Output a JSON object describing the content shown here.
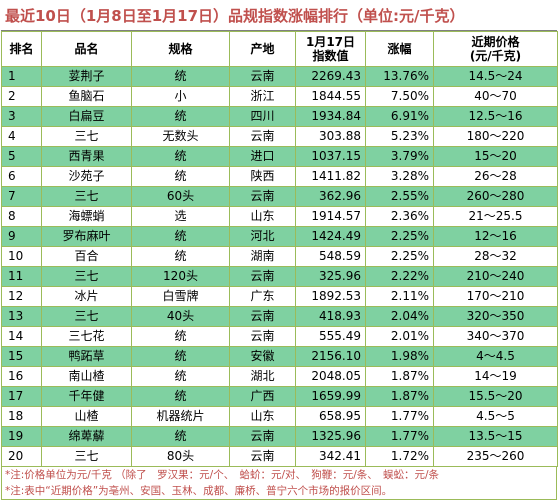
{
  "title": "最近10日（1月8日至1月17日）品规指数涨幅排行（单位:元/千克）",
  "headers": {
    "rank": "排名",
    "name": "品名",
    "spec": "规格",
    "origin": "产地",
    "index_line1": "1月17日",
    "index_line2": "指数值",
    "change": "涨幅",
    "price_line1": "近期价格",
    "price_line2": "(元/千克)"
  },
  "rows": [
    {
      "rank": "1",
      "name": "荽荆子",
      "spec": "统",
      "origin": "云南",
      "index": "2269.43",
      "change": "13.76%",
      "price": "14.5～24"
    },
    {
      "rank": "2",
      "name": "鱼脑石",
      "spec": "小",
      "origin": "浙江",
      "index": "1844.55",
      "change": "7.50%",
      "price": "40～70"
    },
    {
      "rank": "3",
      "name": "白扁豆",
      "spec": "统",
      "origin": "四川",
      "index": "1934.84",
      "change": "6.91%",
      "price": "12.5～16"
    },
    {
      "rank": "4",
      "name": "三七",
      "spec": "无数头",
      "origin": "云南",
      "index": "303.88",
      "change": "5.23%",
      "price": "180～220"
    },
    {
      "rank": "5",
      "name": "西青果",
      "spec": "统",
      "origin": "进口",
      "index": "1037.15",
      "change": "3.79%",
      "price": "15～20"
    },
    {
      "rank": "6",
      "name": "沙苑子",
      "spec": "统",
      "origin": "陕西",
      "index": "1411.82",
      "change": "3.28%",
      "price": "26～28"
    },
    {
      "rank": "7",
      "name": "三七",
      "spec": "60头",
      "origin": "云南",
      "index": "362.96",
      "change": "2.55%",
      "price": "260～280"
    },
    {
      "rank": "8",
      "name": "海螵蛸",
      "spec": "选",
      "origin": "山东",
      "index": "1914.57",
      "change": "2.36%",
      "price": "21～25.5"
    },
    {
      "rank": "9",
      "name": "罗布麻叶",
      "spec": "统",
      "origin": "河北",
      "index": "1424.49",
      "change": "2.25%",
      "price": "12～16"
    },
    {
      "rank": "10",
      "name": "百合",
      "spec": "统",
      "origin": "湖南",
      "index": "548.59",
      "change": "2.25%",
      "price": "28～32"
    },
    {
      "rank": "11",
      "name": "三七",
      "spec": "120头",
      "origin": "云南",
      "index": "325.96",
      "change": "2.22%",
      "price": "210～240"
    },
    {
      "rank": "12",
      "name": "冰片",
      "spec": "白雪牌",
      "origin": "广东",
      "index": "1892.53",
      "change": "2.11%",
      "price": "170～210"
    },
    {
      "rank": "13",
      "name": "三七",
      "spec": "40头",
      "origin": "云南",
      "index": "418.93",
      "change": "2.04%",
      "price": "320～350"
    },
    {
      "rank": "14",
      "name": "三七花",
      "spec": "统",
      "origin": "云南",
      "index": "555.49",
      "change": "2.01%",
      "price": "340～370"
    },
    {
      "rank": "15",
      "name": "鸭跖草",
      "spec": "统",
      "origin": "安徽",
      "index": "2156.10",
      "change": "1.98%",
      "price": "4～4.5"
    },
    {
      "rank": "16",
      "name": "南山楂",
      "spec": "统",
      "origin": "湖北",
      "index": "2048.05",
      "change": "1.87%",
      "price": "14～19"
    },
    {
      "rank": "17",
      "name": "千年健",
      "spec": "统",
      "origin": "广西",
      "index": "1659.99",
      "change": "1.87%",
      "price": "15.5～20"
    },
    {
      "rank": "18",
      "name": "山楂",
      "spec": "机器统片",
      "origin": "山东",
      "index": "658.95",
      "change": "1.77%",
      "price": "4.5～5"
    },
    {
      "rank": "19",
      "name": "绵萆薢",
      "spec": "统",
      "origin": "云南",
      "index": "1325.96",
      "change": "1.77%",
      "price": "13.5～15"
    },
    {
      "rank": "20",
      "name": "三七",
      "spec": "80头",
      "origin": "云南",
      "index": "342.41",
      "change": "1.72%",
      "price": "235～260"
    }
  ],
  "notes": [
    "*注:价格单位为元/千克 （除了　罗汉果：元/个、　蛤蚧：元/对、　狗鞭：元/条、　蜈蚣：元/条",
    "*注:表中“近期价格”为亳州、安国、玉林、成都、廉桥、普宁六个市场的报价区间。"
  ],
  "colors": {
    "title": "#c0504d",
    "stripe": "#7fd1a1",
    "grid": "#9bbb59"
  }
}
